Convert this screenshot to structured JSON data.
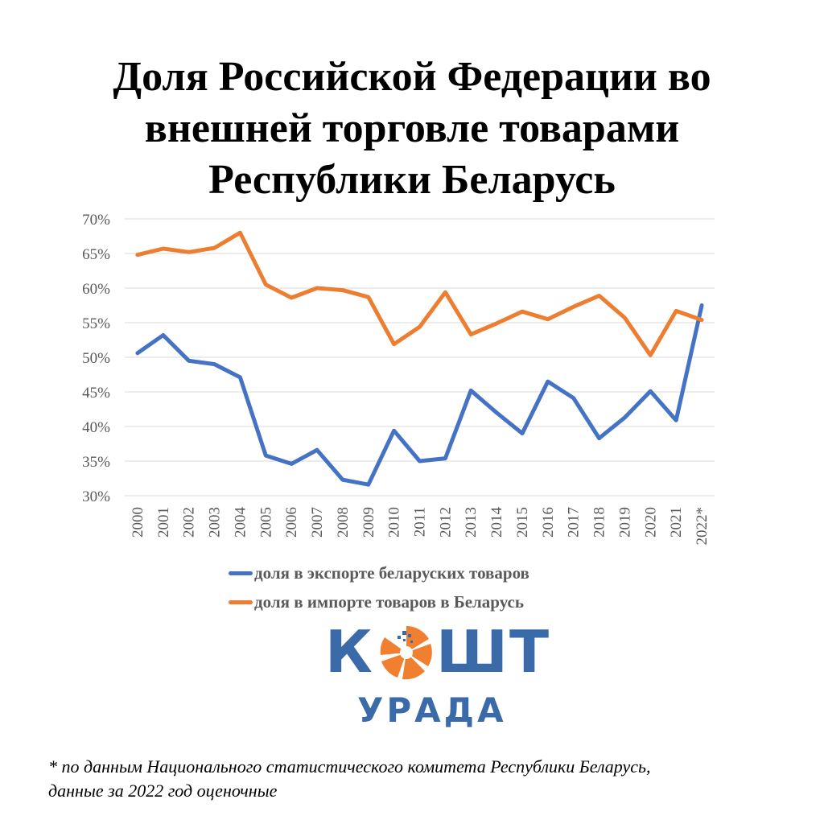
{
  "header": {
    "title_lines": [
      "Доля Российской Федерации во",
      "внешней торговле товарами",
      "Республики Беларусь"
    ]
  },
  "chart_data": {
    "type": "line",
    "x": [
      "2000",
      "2001",
      "2002",
      "2003",
      "2004",
      "2005",
      "2006",
      "2007",
      "2008",
      "2009",
      "2010",
      "2011",
      "2012",
      "2013",
      "2014",
      "2015",
      "2016",
      "2017",
      "2018",
      "2019",
      "2020",
      "2021",
      "2022*"
    ],
    "ylim": [
      0.3,
      0.7
    ],
    "y_ticks": [
      "30%",
      "35%",
      "40%",
      "45%",
      "50%",
      "55%",
      "60%",
      "65%",
      "70%"
    ],
    "y_tick_values": [
      0.3,
      0.35,
      0.4,
      0.45,
      0.5,
      0.55,
      0.6,
      0.65,
      0.7
    ],
    "grid": true,
    "legend_position": "bottom",
    "series": [
      {
        "name": "доля в экспорте беларуских товаров",
        "color": "#4472c4",
        "values": [
          0.506,
          0.532,
          0.495,
          0.49,
          0.471,
          0.358,
          0.346,
          0.366,
          0.323,
          0.316,
          0.394,
          0.35,
          0.354,
          0.452,
          0.42,
          0.39,
          0.465,
          0.441,
          0.383,
          0.413,
          0.451,
          0.409,
          0.575
        ]
      },
      {
        "name": "доля в импорте товаров в Беларусь",
        "color": "#ed7d31",
        "values": [
          0.648,
          0.657,
          0.652,
          0.658,
          0.68,
          0.605,
          0.586,
          0.6,
          0.597,
          0.587,
          0.519,
          0.544,
          0.594,
          0.533,
          0.549,
          0.566,
          0.555,
          0.573,
          0.589,
          0.557,
          0.503,
          0.567,
          0.554
        ]
      }
    ]
  },
  "logo": {
    "top_text_left": "К",
    "top_text_right": "ШТ",
    "bottom_text": "УРАДА",
    "color_blue": "#3b6aa8",
    "color_orange": "#f07f2f"
  },
  "footnote": {
    "lines": [
      "* по данным Национального статистического комитета Республики Беларусь,",
      "данные за 2022 год оценочные"
    ]
  }
}
